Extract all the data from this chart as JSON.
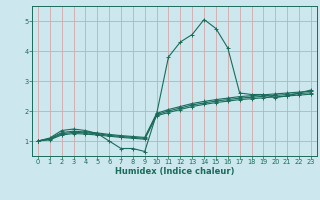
{
  "xlabel": "Humidex (Indice chaleur)",
  "bg_color": "#cce8ee",
  "grid_color": "#d4a8a8",
  "line_color": "#1a6b5a",
  "xlim": [
    -0.5,
    23.5
  ],
  "ylim": [
    0.5,
    5.5
  ],
  "yticks": [
    1,
    2,
    3,
    4,
    5
  ],
  "xticks": [
    0,
    1,
    2,
    3,
    4,
    5,
    6,
    7,
    8,
    9,
    10,
    11,
    12,
    13,
    14,
    15,
    16,
    17,
    18,
    19,
    20,
    21,
    22,
    23
  ],
  "lines": [
    {
      "x": [
        0,
        1,
        2,
        3,
        4,
        5,
        6,
        7,
        8,
        9,
        10,
        11,
        12,
        13,
        14,
        15,
        16,
        17,
        18,
        19,
        20,
        21,
        22,
        23
      ],
      "y": [
        1.0,
        1.1,
        1.35,
        1.4,
        1.35,
        1.25,
        1.0,
        0.75,
        0.75,
        0.65,
        1.9,
        3.8,
        4.3,
        4.55,
        5.05,
        4.75,
        4.1,
        2.6,
        2.55,
        2.55,
        2.45,
        2.5,
        2.6,
        2.7
      ]
    },
    {
      "x": [
        0,
        1,
        2,
        3,
        4,
        5,
        6,
        7,
        8,
        9,
        10,
        11,
        12,
        13,
        14,
        15,
        16,
        17,
        18,
        19,
        20,
        21,
        22,
        23
      ],
      "y": [
        1.0,
        1.08,
        1.28,
        1.33,
        1.3,
        1.27,
        1.22,
        1.18,
        1.15,
        1.12,
        1.92,
        2.05,
        2.15,
        2.25,
        2.32,
        2.38,
        2.43,
        2.48,
        2.51,
        2.54,
        2.57,
        2.6,
        2.63,
        2.66
      ]
    },
    {
      "x": [
        0,
        1,
        2,
        3,
        4,
        5,
        6,
        7,
        8,
        9,
        10,
        11,
        12,
        13,
        14,
        15,
        16,
        17,
        18,
        19,
        20,
        21,
        22,
        23
      ],
      "y": [
        1.0,
        1.06,
        1.24,
        1.29,
        1.27,
        1.24,
        1.19,
        1.15,
        1.12,
        1.09,
        1.88,
        2.0,
        2.1,
        2.2,
        2.27,
        2.33,
        2.38,
        2.43,
        2.46,
        2.49,
        2.52,
        2.55,
        2.58,
        2.61
      ]
    },
    {
      "x": [
        0,
        1,
        2,
        3,
        4,
        5,
        6,
        7,
        8,
        9,
        10,
        11,
        12,
        13,
        14,
        15,
        16,
        17,
        18,
        19,
        20,
        21,
        22,
        23
      ],
      "y": [
        1.0,
        1.04,
        1.2,
        1.25,
        1.23,
        1.2,
        1.16,
        1.12,
        1.09,
        1.06,
        1.84,
        1.95,
        2.05,
        2.15,
        2.22,
        2.28,
        2.33,
        2.38,
        2.41,
        2.44,
        2.47,
        2.5,
        2.53,
        2.56
      ]
    }
  ]
}
